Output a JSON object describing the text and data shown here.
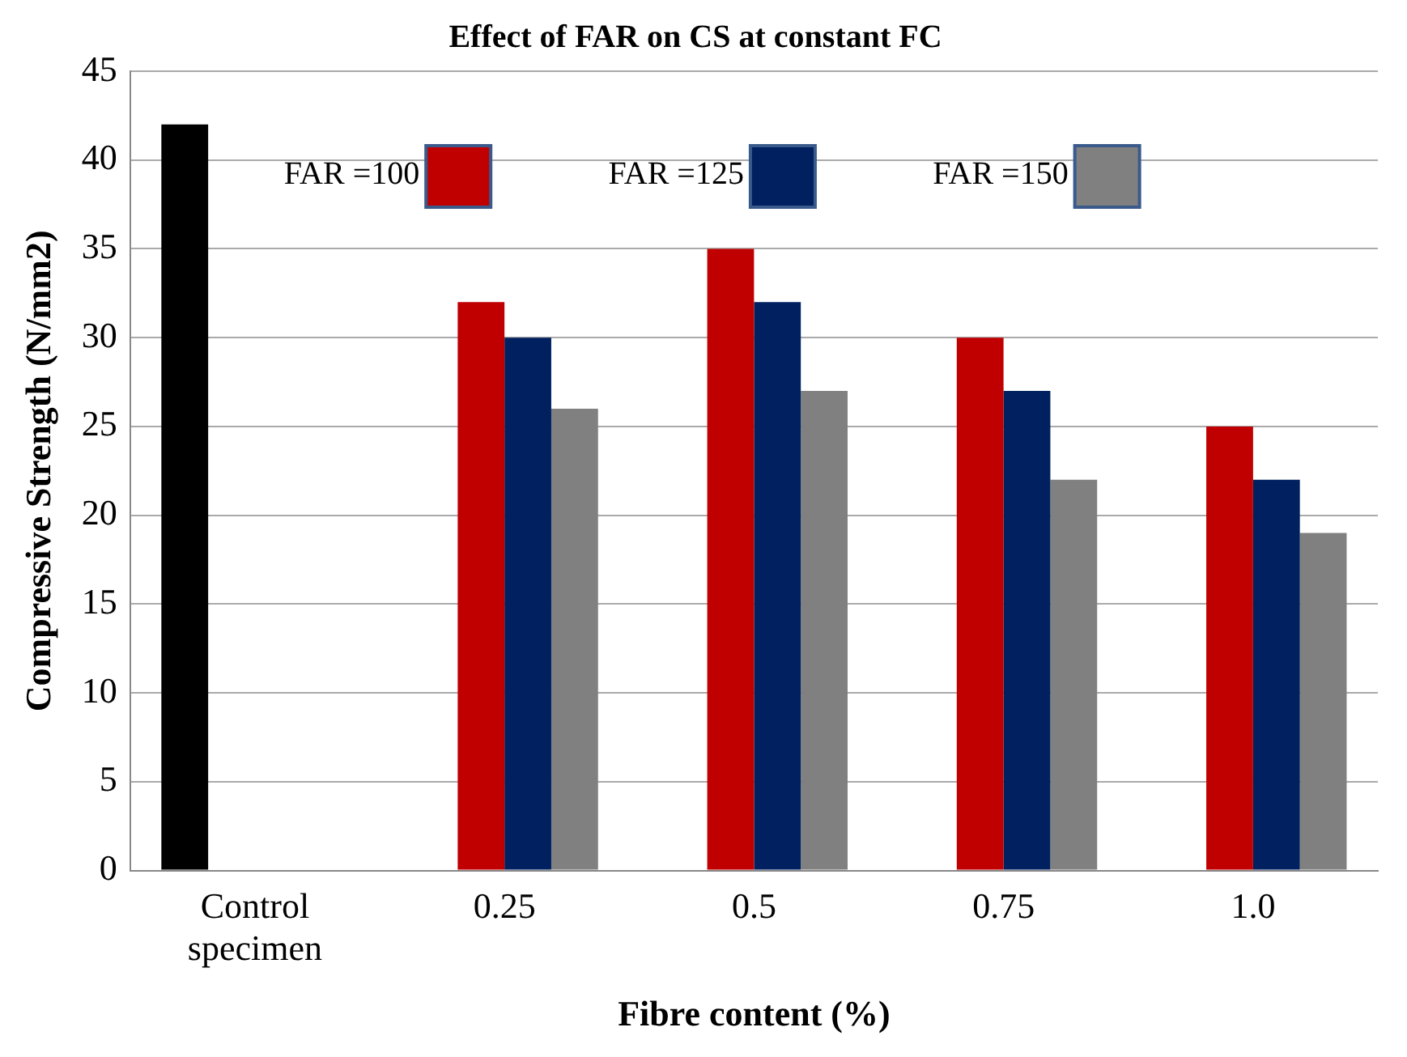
{
  "chart_data": {
    "type": "bar",
    "title": "Effect of FAR on CS at constant FC",
    "xlabel": "Fibre content (%)",
    "ylabel": "Compressive Strength (N/mm2)",
    "categories": [
      "Control specimen",
      "0.25",
      "0.5",
      "0.75",
      "1.0"
    ],
    "series": [
      {
        "color": "#000000",
        "values": [
          42,
          null,
          null,
          null,
          null
        ]
      },
      {
        "name": "FAR =100",
        "color": "#c00000",
        "values": [
          null,
          32,
          35,
          30,
          25
        ]
      },
      {
        "name": "FAR =125",
        "color": "#002060",
        "values": [
          null,
          30,
          32,
          27,
          22
        ]
      },
      {
        "name": "FAR =150",
        "color": "#808080",
        "values": [
          null,
          26,
          27,
          22,
          19
        ]
      }
    ],
    "ylim": [
      0,
      45
    ],
    "yticks": [
      0,
      5,
      10,
      15,
      20,
      25,
      30,
      35,
      40,
      45
    ],
    "grid": "y",
    "legend": "top"
  }
}
